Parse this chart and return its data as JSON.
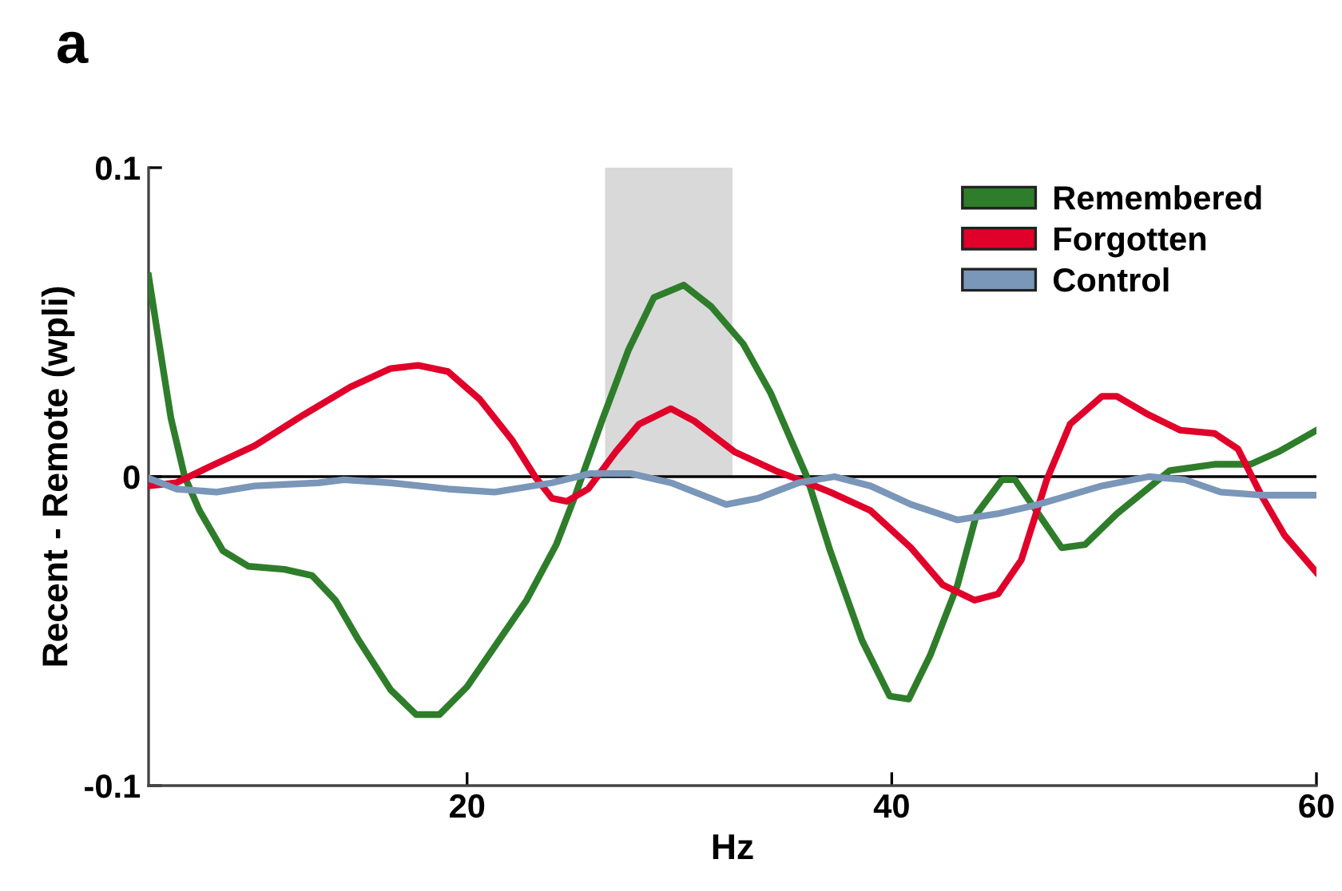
{
  "chart_data": {
    "type": "line",
    "title": "a",
    "xlabel": "Hz",
    "ylabel": "Recent - Remote (wpli)",
    "xlim": [
      5,
      60
    ],
    "ylim": [
      -0.1,
      0.1
    ],
    "xticks": [
      20,
      40,
      60
    ],
    "yticks": [
      {
        "value": -0.1,
        "label": "-0.1"
      },
      0,
      0.1
    ],
    "grid": false,
    "legend": "top right",
    "marker": "none",
    "line_style": "solid",
    "ref_lines": [
      {
        "axis": "y",
        "value": 0,
        "label": null,
        "color": "#000000"
      }
    ],
    "bands": [
      {
        "axis": "x",
        "from": 26.5,
        "to": 32.5,
        "label": null,
        "color": "#d9d9d9"
      }
    ],
    "series": [
      {
        "name": "Remembered",
        "color": "#2e7d2a",
        "x": [
          5.0,
          5.5,
          6.05,
          6.7,
          7.4,
          8.5,
          9.7,
          11.4,
          12.7,
          13.8,
          14.9,
          16.4,
          17.6,
          18.7,
          20,
          21.3,
          22.8,
          24.2,
          25.1,
          26.4,
          27.6,
          28.8,
          30.2,
          31.5,
          33.0,
          34.3,
          36.0,
          37.1,
          38.6,
          39.9,
          40.8,
          41.8,
          43.1,
          44.0,
          45.2,
          45.8,
          46.9,
          48.0,
          49.1,
          50.6,
          53.1,
          55.2,
          56.9,
          58.2,
          60
        ],
        "values": [
          0.065,
          0.043,
          0.019,
          0.0,
          -0.011,
          -0.024,
          -0.029,
          -0.03,
          -0.032,
          -0.04,
          -0.053,
          -0.069,
          -0.077,
          -0.077,
          -0.068,
          -0.055,
          -0.04,
          -0.022,
          -0.006,
          0.019,
          0.041,
          0.058,
          0.062,
          0.055,
          0.043,
          0.027,
          0.0,
          -0.024,
          -0.053,
          -0.071,
          -0.072,
          -0.058,
          -0.035,
          -0.012,
          -0.001,
          -0.001,
          -0.012,
          -0.023,
          -0.022,
          -0.012,
          0.002,
          0.004,
          0.004,
          0.008,
          0.015
        ]
      },
      {
        "name": "Forgotten",
        "color": "#e0002a",
        "x": [
          5,
          6.3,
          7.8,
          10,
          12.3,
          14.5,
          16.4,
          17.7,
          19.1,
          20.6,
          22.1,
          23.2,
          24.0,
          24.7,
          25.7,
          27.0,
          28.1,
          29.6,
          30.7,
          32.6,
          34.5,
          36.0,
          37.1,
          39.0,
          40.9,
          42.4,
          43.9,
          45.0,
          46.1,
          47.3,
          48.4,
          49.9,
          50.6,
          52.1,
          53.6,
          55.2,
          56.3,
          57.4,
          58.5,
          60
        ],
        "values": [
          -0.003,
          -0.002,
          0.003,
          0.01,
          0.02,
          0.029,
          0.035,
          0.036,
          0.034,
          0.025,
          0.012,
          0.0,
          -0.007,
          -0.008,
          -0.004,
          0.008,
          0.017,
          0.022,
          0.018,
          0.008,
          0.002,
          -0.002,
          -0.005,
          -0.011,
          -0.023,
          -0.035,
          -0.04,
          -0.038,
          -0.027,
          -0.001,
          0.017,
          0.026,
          0.026,
          0.02,
          0.015,
          0.014,
          0.009,
          -0.006,
          -0.019,
          -0.031
        ]
      },
      {
        "name": "Control",
        "color": "#7a96b8",
        "x": [
          5,
          6.3,
          8.2,
          10,
          13,
          14.2,
          16.4,
          19.1,
          21.3,
          24,
          25.8,
          27.7,
          29.6,
          32.2,
          33.7,
          35.6,
          37.3,
          39.0,
          40.9,
          43.1,
          45.0,
          46.9,
          49.9,
          52.1,
          53.8,
          55.5,
          57.4,
          60
        ],
        "values": [
          -0.0005,
          -0.004,
          -0.005,
          -0.003,
          -0.002,
          -0.001,
          -0.002,
          -0.004,
          -0.005,
          -0.002,
          0.001,
          0.001,
          -0.002,
          -0.009,
          -0.007,
          -0.002,
          0.0,
          -0.003,
          -0.009,
          -0.014,
          -0.012,
          -0.009,
          -0.003,
          0.0,
          -0.001,
          -0.005,
          -0.006,
          -0.006
        ]
      }
    ]
  }
}
